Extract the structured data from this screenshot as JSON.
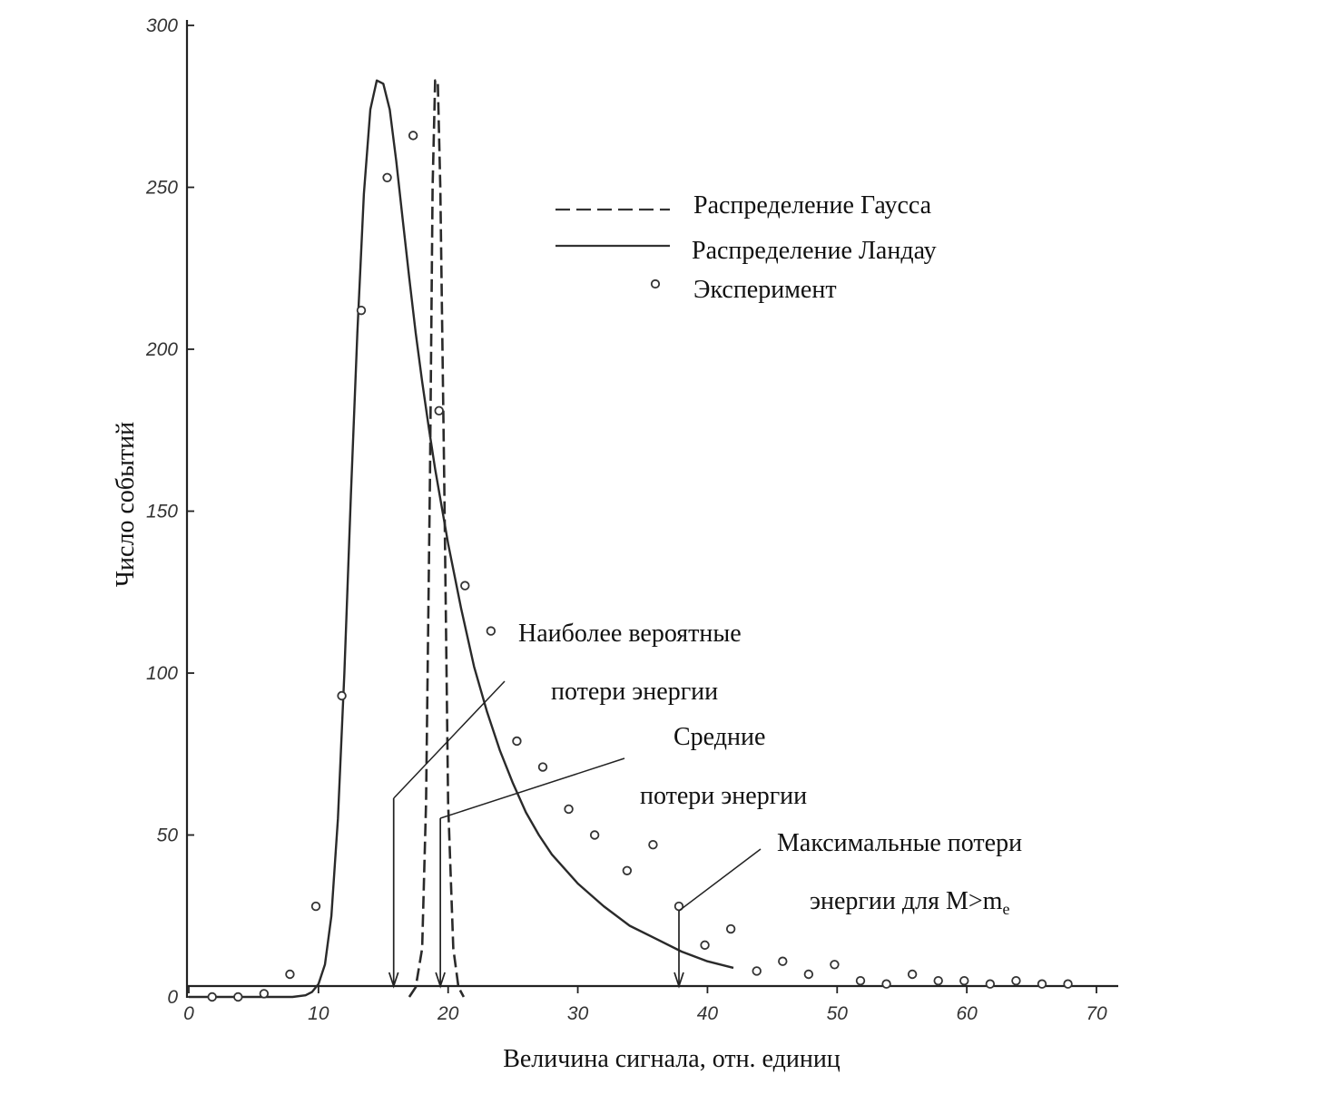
{
  "chart_data": {
    "type": "line",
    "title": "",
    "xlabel": "Величина сигнала,  отн. единиц",
    "ylabel": "Число событий",
    "xlim": [
      0,
      72
    ],
    "ylim": [
      0,
      300
    ],
    "x_ticks": [
      "0",
      "10",
      "20",
      "30",
      "40",
      "50",
      "60",
      "70"
    ],
    "y_ticks": [
      "0",
      "50",
      "100",
      "150",
      "200",
      "250",
      "300"
    ],
    "grid": false,
    "legend_position": "top-right",
    "legend": [
      {
        "label": "Распределение Гаусса",
        "style": "dashed"
      },
      {
        "label": "Распределение Ландау",
        "style": "solid"
      },
      {
        "label": "Эксперимент",
        "style": "marker-circle"
      }
    ],
    "series": [
      {
        "name": "Распределение Ландау",
        "style": "solid",
        "x": [
          0,
          6,
          8,
          9,
          9.5,
          10,
          10.5,
          11,
          11.5,
          12,
          12.5,
          13,
          13.5,
          14,
          14.5,
          15,
          15.5,
          16,
          16.5,
          17,
          17.5,
          18,
          18.5,
          19,
          20,
          21,
          22,
          23,
          24,
          25,
          26,
          27,
          28,
          30,
          32,
          34,
          36,
          38,
          40,
          42
        ],
        "y": [
          0,
          0,
          0,
          0.5,
          1.5,
          4,
          10,
          25,
          55,
          100,
          155,
          205,
          248,
          274,
          283,
          282,
          274,
          258,
          240,
          222,
          205,
          190,
          176,
          163,
          140,
          120,
          102,
          88,
          76,
          66,
          57,
          50,
          44,
          35,
          28,
          22,
          18,
          14,
          11,
          9
        ]
      },
      {
        "name": "Распределение Гаусса",
        "style": "dashed",
        "x": [
          17,
          17.5,
          18,
          18.3,
          18.6,
          18.8,
          19.0,
          19.2,
          19.4,
          19.7,
          20.0,
          20.4,
          20.8,
          21.2
        ],
        "y": [
          0,
          3,
          15,
          60,
          160,
          250,
          283,
          283,
          250,
          160,
          60,
          15,
          3,
          0
        ]
      },
      {
        "name": "Эксперимент",
        "style": "markers",
        "x": [
          1.8,
          3.8,
          5.8,
          7.8,
          9.8,
          11.8,
          13.3,
          15.3,
          17.3,
          19.3,
          21.3,
          23.3,
          25.3,
          27.3,
          29.3,
          31.3,
          33.8,
          35.8,
          37.8,
          39.8,
          41.8,
          43.8,
          45.8,
          47.8,
          49.8,
          51.8,
          53.8,
          55.8,
          57.8,
          59.8,
          61.8,
          63.8,
          65.8,
          67.8
        ],
        "y": [
          0,
          0,
          1,
          7,
          28,
          93,
          212,
          253,
          266,
          181,
          127,
          113,
          79,
          71,
          58,
          50,
          39,
          47,
          28,
          16,
          21,
          8,
          11,
          7,
          10,
          5,
          4,
          7,
          5,
          5,
          4,
          5,
          4,
          4
        ]
      }
    ],
    "annotations": [
      {
        "id": "most_probable",
        "lines": [
          "Наиболее вероятные",
          "потери энергии"
        ],
        "arrow_x": 15.8
      },
      {
        "id": "mean",
        "lines": [
          "Средние",
          "потери энергии"
        ],
        "arrow_x": 19.4
      },
      {
        "id": "maximal",
        "lines": [
          "Максимальные потери",
          "энергии  для M>m"
        ],
        "subscript": "e",
        "arrow_x": 37.8
      }
    ]
  }
}
